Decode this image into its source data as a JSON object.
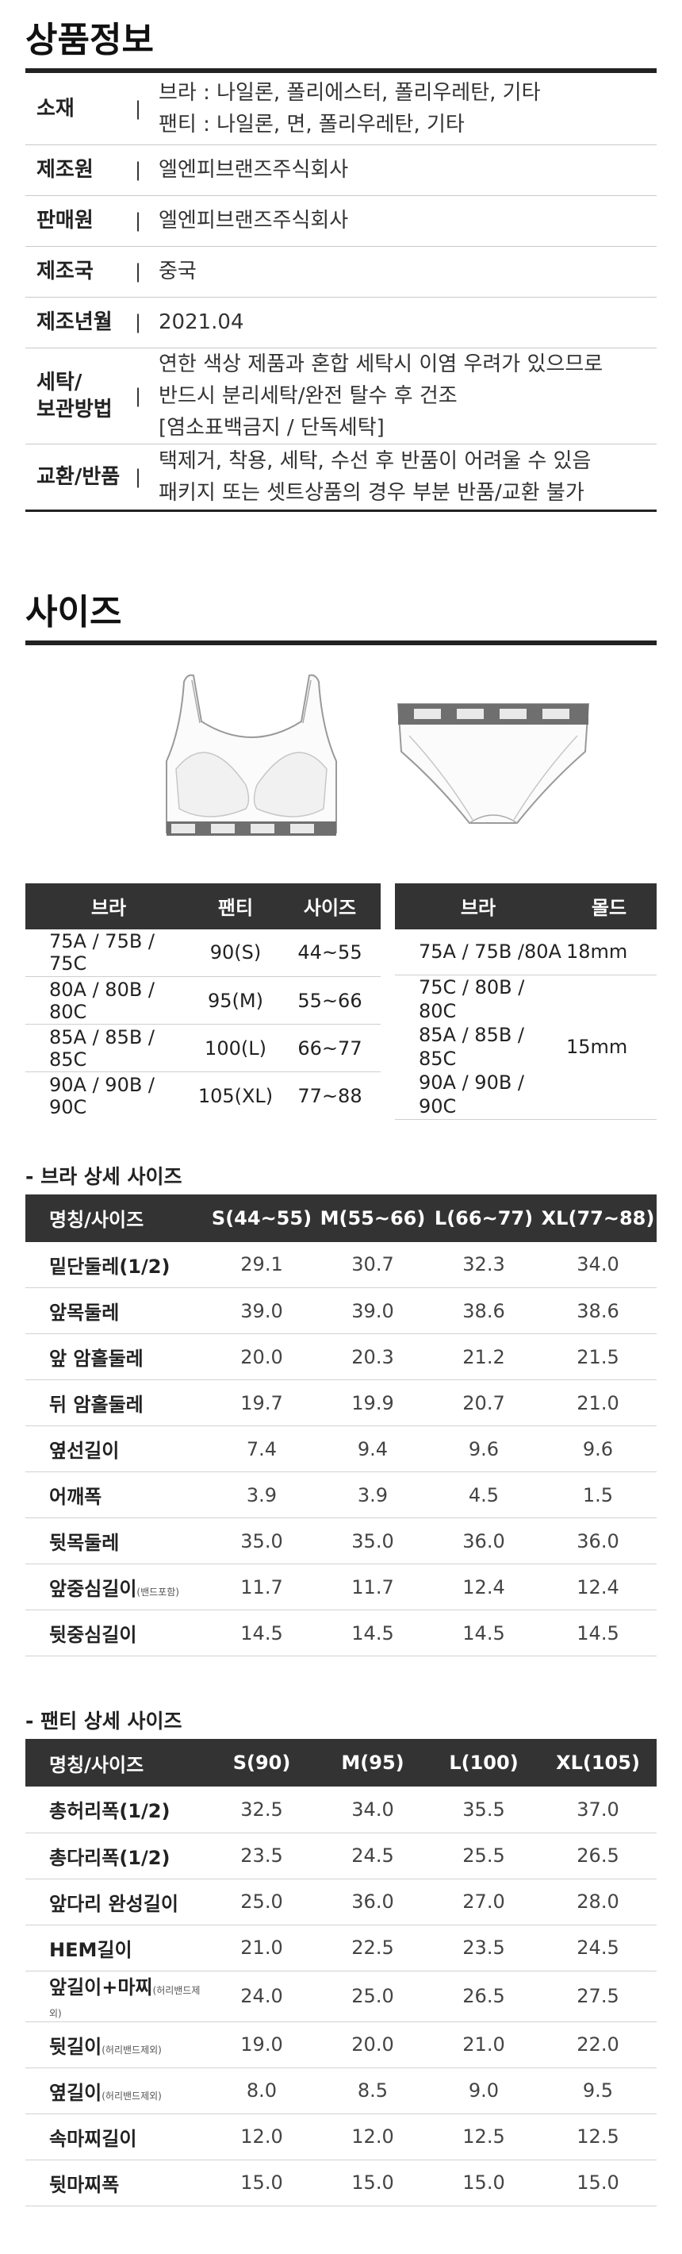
{
  "product_info": {
    "title": "상품정보",
    "rows": [
      {
        "label": "소재",
        "lines": [
          "브라 : 나일론, 폴리에스터, 폴리우레탄, 기타",
          "팬티 : 나일론, 면, 폴리우레탄, 기타"
        ]
      },
      {
        "label": "제조원",
        "lines": [
          "엘엔피브랜즈주식회사"
        ]
      },
      {
        "label": "판매원",
        "lines": [
          "엘엔피브랜즈주식회사"
        ]
      },
      {
        "label": "제조국",
        "lines": [
          "중국"
        ]
      },
      {
        "label": "제조년월",
        "lines": [
          "2021.04"
        ]
      },
      {
        "label": "세탁/\n보관방법",
        "label_lines": [
          "세탁/",
          "보관방법"
        ],
        "lines": [
          "연한 색상 제품과 혼합 세탁시 이염 우려가 있으므로",
          "반드시 분리세탁/완전 탈수 후 건조",
          "[염소표백금지 / 단독세탁]"
        ]
      },
      {
        "label": "교환/반품",
        "lines": [
          "택제거, 착용, 세탁, 수선 후 반품이 어려울 수 있음",
          "패키지 또는 셋트상품의 경우 부분 반품/교환 불가"
        ]
      }
    ],
    "separator": "|"
  },
  "size_section": {
    "title": "사이즈",
    "size_table": {
      "headers": [
        "브라",
        "팬티",
        "사이즈"
      ],
      "rows": [
        [
          "75A / 75B / 75C",
          "90(S)",
          "44~55"
        ],
        [
          "80A / 80B / 80C",
          "95(M)",
          "55~66"
        ],
        [
          "85A / 85B / 85C",
          "100(L)",
          "66~77"
        ],
        [
          "90A / 90B / 90C",
          "105(XL)",
          "77~88"
        ]
      ]
    },
    "mold_table": {
      "headers": [
        "브라",
        "몰드"
      ],
      "rows": [
        {
          "bra": [
            "75A / 75B /80A"
          ],
          "mold": "18mm"
        },
        {
          "bra": [
            "75C / 80B / 80C",
            "85A / 85B / 85C",
            "90A / 90B / 90C"
          ],
          "mold": "15mm"
        }
      ]
    },
    "bra_detail": {
      "title": "- 브라 상세 사이즈",
      "headers": [
        "명칭/사이즈",
        "S(44~55)",
        "M(55~66)",
        "L(66~77)",
        "XL(77~88)"
      ],
      "rows": [
        {
          "name": "밑단둘레(1/2)",
          "note": "",
          "values": [
            "29.1",
            "30.7",
            "32.3",
            "34.0"
          ]
        },
        {
          "name": "앞목둘레",
          "note": "",
          "values": [
            "39.0",
            "39.0",
            "38.6",
            "38.6"
          ]
        },
        {
          "name": "앞 암홀둘레",
          "note": "",
          "values": [
            "20.0",
            "20.3",
            "21.2",
            "21.5"
          ]
        },
        {
          "name": "뒤 암홀둘레",
          "note": "",
          "values": [
            "19.7",
            "19.9",
            "20.7",
            "21.0"
          ]
        },
        {
          "name": "옆선길이",
          "note": "",
          "values": [
            "7.4",
            "9.4",
            "9.6",
            "9.6"
          ]
        },
        {
          "name": "어깨폭",
          "note": "",
          "values": [
            "3.9",
            "3.9",
            "4.5",
            "1.5"
          ]
        },
        {
          "name": "뒷목둘레",
          "note": "",
          "values": [
            "35.0",
            "35.0",
            "36.0",
            "36.0"
          ]
        },
        {
          "name": "앞중심길이",
          "note": "(밴드포함)",
          "values": [
            "11.7",
            "11.7",
            "12.4",
            "12.4"
          ]
        },
        {
          "name": "뒷중심길이",
          "note": "",
          "values": [
            "14.5",
            "14.5",
            "14.5",
            "14.5"
          ]
        }
      ]
    },
    "panty_detail": {
      "title": "- 팬티 상세 사이즈",
      "headers": [
        "명칭/사이즈",
        "S(90)",
        "M(95)",
        "L(100)",
        "XL(105)"
      ],
      "rows": [
        {
          "name": "총허리폭(1/2)",
          "note": "",
          "values": [
            "32.5",
            "34.0",
            "35.5",
            "37.0"
          ]
        },
        {
          "name": "총다리폭(1/2)",
          "note": "",
          "values": [
            "23.5",
            "24.5",
            "25.5",
            "26.5"
          ]
        },
        {
          "name": "앞다리 완성길이",
          "note": "",
          "values": [
            "25.0",
            "36.0",
            "27.0",
            "28.0"
          ]
        },
        {
          "name": "HEM길이",
          "note": "",
          "values": [
            "21.0",
            "22.5",
            "23.5",
            "24.5"
          ]
        },
        {
          "name": "앞길이+마찌",
          "note": "(허리밴드제외)",
          "values": [
            "24.0",
            "25.0",
            "26.5",
            "27.5"
          ]
        },
        {
          "name": "뒷길이",
          "note": "(허리밴드제외)",
          "values": [
            "19.0",
            "20.0",
            "21.0",
            "22.0"
          ]
        },
        {
          "name": "옆길이",
          "note": "(허리밴드제외)",
          "values": [
            "8.0",
            "8.5",
            "9.0",
            "9.5"
          ]
        },
        {
          "name": "속마찌길이",
          "note": "",
          "values": [
            "12.0",
            "12.0",
            "12.5",
            "12.5"
          ]
        },
        {
          "name": "뒷마찌폭",
          "note": "",
          "values": [
            "15.0",
            "15.0",
            "15.0",
            "15.0"
          ]
        }
      ]
    }
  },
  "colors": {
    "header_bg": "#333333",
    "rule": "#222222",
    "divider": "#cfcfcf"
  }
}
